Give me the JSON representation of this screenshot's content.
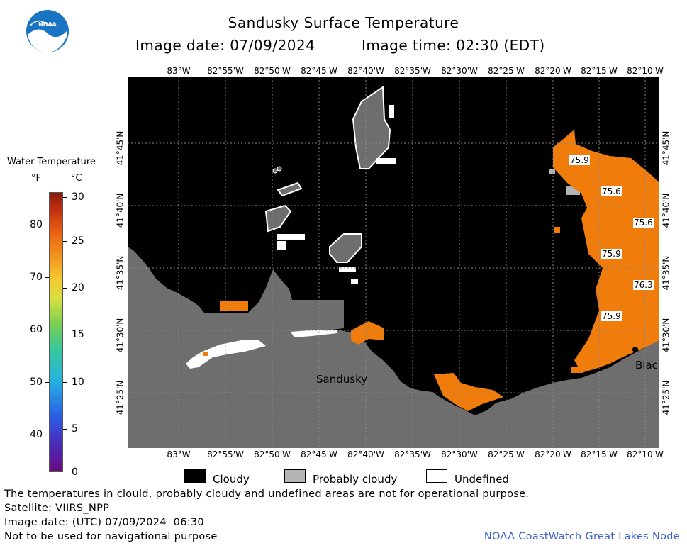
{
  "header": {
    "title": "Sandusky Surface Temperature",
    "image_date": "Image date: 07/09/2024",
    "image_time": "Image time: 02:30 (EDT)"
  },
  "logo": {
    "text": "NOAA",
    "icon": "noaa-logo-icon"
  },
  "map": {
    "lon_labels": [
      "83°W",
      "82°55'W",
      "82°50'W",
      "82°45'W",
      "82°40'W",
      "82°35'W",
      "82°30'W",
      "82°25'W",
      "82°20'W",
      "82°15'W",
      "82°10'W"
    ],
    "lat_labels": [
      "41°45'N",
      "41°40'N",
      "41°35'N",
      "41°30'N",
      "41°25'N"
    ],
    "place_labels": {
      "city": "Sandusky",
      "cut_label": "Blac"
    },
    "temperature_labels": [
      "75.9",
      "75.6",
      "75.6",
      "75.9",
      "76.3",
      "75.9"
    ],
    "colors": {
      "land": "#6e6e6e",
      "cloudy": "#000000",
      "probably_cloudy": "#b4b4b4",
      "undefined": "#ffffff",
      "water_warm": "#f07c0c"
    }
  },
  "colorbar": {
    "title": "Water Temperature",
    "unit_f": "°F",
    "unit_c": "°C",
    "f_ticks": [
      "80",
      "70",
      "60",
      "50",
      "40"
    ],
    "c_ticks": [
      "30",
      "25",
      "20",
      "15",
      "10",
      "5",
      "0"
    ]
  },
  "legend": {
    "cloudy": "Cloudy",
    "probably_cloudy": "Probably cloudy",
    "undefined": "Undefined"
  },
  "notes": {
    "disclaimer": "The temperatures in clould, probably cloudy and undefined areas are not for operational purpose.",
    "satellite": "Satellite: VIIRS_NPP",
    "utc_date": "Image date: (UTC) 07/09/2024  06:30",
    "nav_warning": "Not to be used for navigational purpose",
    "credit": "NOAA CoastWatch Great Lakes Node"
  }
}
